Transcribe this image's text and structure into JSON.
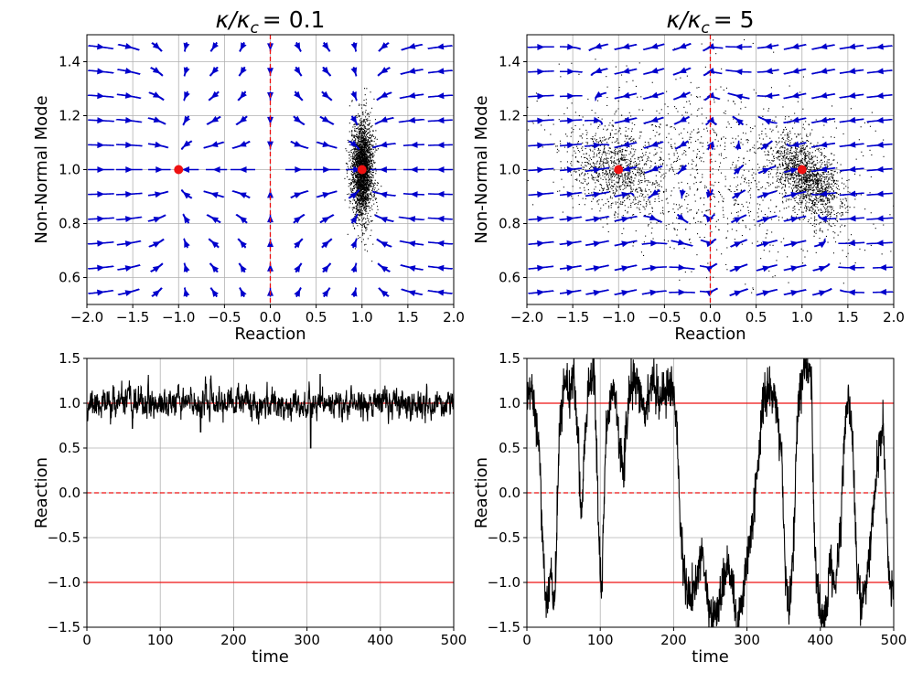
{
  "chart_data": [
    {
      "type": "streamplot",
      "title_prefix": "κ/κ",
      "title_sub": "c",
      "title_value": "= 0.1",
      "xlabel": "Reaction",
      "ylabel": "Non-Normal Mode",
      "xlim": [
        -2.0,
        2.0
      ],
      "ylim": [
        0.5,
        1.5
      ],
      "xticks": [
        -2.0,
        -1.5,
        -1.0,
        -0.5,
        0.0,
        0.5,
        1.0,
        1.5,
        2.0
      ],
      "xtick_labels": [
        "−2.0",
        "−1.5",
        "−1.0",
        "−0.5",
        "0.0",
        "0.5",
        "1.0",
        "1.5",
        "2.0"
      ],
      "yticks": [
        0.6,
        0.8,
        1.0,
        1.2,
        1.4
      ],
      "ytick_labels": [
        "0.6",
        "0.8",
        "1.0",
        "1.2",
        "1.4"
      ],
      "grid": true,
      "fixed_points": [
        {
          "x": -1.0,
          "y": 1.0
        },
        {
          "x": 1.0,
          "y": 1.0
        }
      ],
      "separatrix_x": 0.0,
      "flow": {
        "kappa": 0.1
      },
      "scatter_clouds": [
        {
          "cx": 1.0,
          "cy": 1.0,
          "sx": 0.06,
          "sy": 0.09,
          "rho": 0.0,
          "count": 2600
        }
      ],
      "colors": {
        "streamline": "#0000cc",
        "fixed_point": "#ee1111",
        "separatrix": "#ee1111",
        "scatter": "#000000"
      }
    },
    {
      "type": "streamplot",
      "title_prefix": "κ/κ",
      "title_sub": "c",
      "title_value": "= 5",
      "xlabel": "Reaction",
      "ylabel": "Non-Normal Mode",
      "xlim": [
        -2.0,
        2.0
      ],
      "ylim": [
        0.5,
        1.5
      ],
      "xticks": [
        -2.0,
        -1.5,
        -1.0,
        -0.5,
        0.0,
        0.5,
        1.0,
        1.5,
        2.0
      ],
      "xtick_labels": [
        "−2.0",
        "−1.5",
        "−1.0",
        "−0.5",
        "0.0",
        "0.5",
        "1.0",
        "1.5",
        "2.0"
      ],
      "yticks": [
        0.6,
        0.8,
        1.0,
        1.2,
        1.4
      ],
      "ytick_labels": [
        "0.6",
        "0.8",
        "1.0",
        "1.2",
        "1.4"
      ],
      "grid": true,
      "fixed_points": [
        {
          "x": -1.0,
          "y": 1.0
        },
        {
          "x": 1.0,
          "y": 1.0
        }
      ],
      "separatrix_x": 0.0,
      "flow": {
        "kappa": 5
      },
      "scatter_clouds": [
        {
          "cx": 1.05,
          "cy": 0.97,
          "sx": 0.2,
          "sy": 0.08,
          "rho": -0.55,
          "count": 1500
        },
        {
          "cx": -1.05,
          "cy": 1.0,
          "sx": 0.25,
          "sy": 0.08,
          "rho": -0.35,
          "count": 900
        },
        {
          "cx": 0.0,
          "cy": 1.0,
          "sx": 0.9,
          "sy": 0.17,
          "rho": -0.25,
          "count": 1100
        }
      ],
      "colors": {
        "streamline": "#0000cc",
        "fixed_point": "#ee1111",
        "separatrix": "#ee1111",
        "scatter": "#000000"
      }
    },
    {
      "type": "line",
      "title": "",
      "xlabel": "time",
      "ylabel": "Reaction",
      "xlim": [
        0,
        500
      ],
      "ylim": [
        -1.5,
        1.5
      ],
      "xticks": [
        0,
        100,
        200,
        300,
        400,
        500
      ],
      "xtick_labels": [
        "0",
        "100",
        "200",
        "300",
        "400",
        "500"
      ],
      "yticks": [
        -1.5,
        -1.0,
        -0.5,
        0.0,
        0.5,
        1.0,
        1.5
      ],
      "ytick_labels": [
        "−1.5",
        "−1.0",
        "−0.5",
        "0.0",
        "0.5",
        "1.0",
        "1.5"
      ],
      "grid": true,
      "hlines": [
        {
          "y": 1.0,
          "style": "solid"
        },
        {
          "y": 0.0,
          "style": "dashed"
        },
        {
          "y": -1.0,
          "style": "solid"
        }
      ],
      "series": [
        {
          "name": "reaction",
          "description": "noisy trace around 1.0 (mean 1.0, sd ~0.08, min ~0.5 near t=305)",
          "seed": 11,
          "mean": 1.0,
          "sd": 0.08,
          "events": [
            {
              "t": 305,
              "y": 0.5
            },
            {
              "t": 62,
              "y": 0.72
            },
            {
              "t": 318,
              "y": 1.32
            },
            {
              "t": 155,
              "y": 0.68
            }
          ]
        }
      ],
      "colors": {
        "line": "#000000",
        "hline": "#ee1111"
      }
    },
    {
      "type": "line",
      "title": "",
      "xlabel": "time",
      "ylabel": "Reaction",
      "xlim": [
        0,
        500
      ],
      "ylim": [
        -1.5,
        1.5
      ],
      "xticks": [
        0,
        100,
        200,
        300,
        400,
        500
      ],
      "xtick_labels": [
        "0",
        "100",
        "200",
        "300",
        "400",
        "500"
      ],
      "yticks": [
        -1.5,
        -1.0,
        -0.5,
        0.0,
        0.5,
        1.0,
        1.5
      ],
      "ytick_labels": [
        "−1.5",
        "−1.0",
        "−0.5",
        "0.0",
        "0.5",
        "1.0",
        "1.5"
      ],
      "grid": true,
      "hlines": [
        {
          "y": 1.0,
          "style": "solid"
        },
        {
          "y": 0.0,
          "style": "dashed"
        },
        {
          "y": -1.0,
          "style": "solid"
        }
      ],
      "series": [
        {
          "name": "reaction",
          "description": "switching between the two wells (+1 and -1)",
          "anchors": [
            [
              0,
              1.0
            ],
            [
              6,
              1.2
            ],
            [
              12,
              0.8
            ],
            [
              18,
              0.4
            ],
            [
              22,
              -0.6
            ],
            [
              26,
              -1.3
            ],
            [
              32,
              -0.9
            ],
            [
              38,
              -1.3
            ],
            [
              44,
              0.6
            ],
            [
              50,
              1.2
            ],
            [
              58,
              1.1
            ],
            [
              64,
              1.3
            ],
            [
              70,
              0.6
            ],
            [
              74,
              -0.3
            ],
            [
              78,
              0.5
            ],
            [
              84,
              1.2
            ],
            [
              92,
              1.4
            ],
            [
              98,
              -0.5
            ],
            [
              102,
              -1.1
            ],
            [
              108,
              0.8
            ],
            [
              118,
              1.2
            ],
            [
              126,
              0.6
            ],
            [
              132,
              0.2
            ],
            [
              138,
              1.0
            ],
            [
              146,
              1.3
            ],
            [
              154,
              1.1
            ],
            [
              162,
              0.9
            ],
            [
              172,
              1.3
            ],
            [
              180,
              1.0
            ],
            [
              190,
              1.2
            ],
            [
              200,
              1.2
            ],
            [
              205,
              0.6
            ],
            [
              210,
              -0.5
            ],
            [
              214,
              -0.9
            ],
            [
              220,
              -1.2
            ],
            [
              230,
              -1.0
            ],
            [
              240,
              -0.7
            ],
            [
              248,
              -1.3
            ],
            [
              256,
              -1.4
            ],
            [
              264,
              -1.2
            ],
            [
              272,
              -0.8
            ],
            [
              280,
              -1.0
            ],
            [
              286,
              -1.5
            ],
            [
              292,
              -1.3
            ],
            [
              298,
              -0.9
            ],
            [
              304,
              -0.6
            ],
            [
              310,
              -0.1
            ],
            [
              316,
              0.4
            ],
            [
              320,
              0.9
            ],
            [
              330,
              1.2
            ],
            [
              340,
              1.0
            ],
            [
              348,
              0.3
            ],
            [
              352,
              -0.9
            ],
            [
              358,
              -1.3
            ],
            [
              364,
              -0.5
            ],
            [
              368,
              0.6
            ],
            [
              372,
              1.2
            ],
            [
              380,
              1.4
            ],
            [
              388,
              1.3
            ],
            [
              392,
              -0.6
            ],
            [
              398,
              -1.3
            ],
            [
              408,
              -1.4
            ],
            [
              414,
              -0.8
            ],
            [
              420,
              -1.1
            ],
            [
              428,
              -0.3
            ],
            [
              432,
              0.5
            ],
            [
              438,
              1.1
            ],
            [
              444,
              0.6
            ],
            [
              450,
              -0.9
            ],
            [
              456,
              -1.3
            ],
            [
              462,
              -1.0
            ],
            [
              468,
              -0.6
            ],
            [
              474,
              0.0
            ],
            [
              480,
              0.5
            ],
            [
              486,
              0.8
            ],
            [
              492,
              -0.7
            ],
            [
              496,
              -1.2
            ],
            [
              500,
              -1.0
            ]
          ],
          "seed": 29,
          "jitter": 0.12
        }
      ],
      "colors": {
        "line": "#000000",
        "hline": "#ee1111"
      }
    }
  ]
}
